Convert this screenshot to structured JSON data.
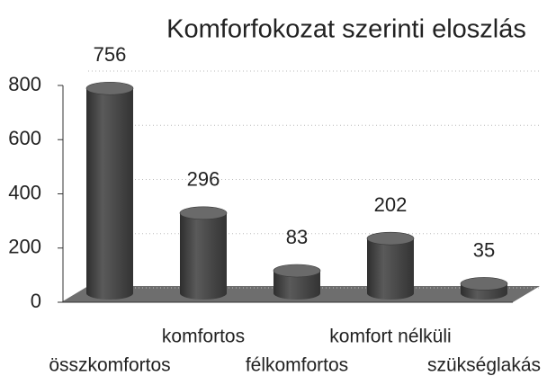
{
  "chart_data": {
    "type": "bar",
    "title": "Komforfokozat szerinti eloszlás",
    "categories": [
      "összkomfortos",
      "komfortos",
      "félkomfortos",
      "komfort nélküli",
      "szükséglakás"
    ],
    "values": [
      756,
      296,
      83,
      202,
      35
    ],
    "color": "#4a4a4a",
    "ylim": [
      0,
      800
    ],
    "yticks": [
      0,
      200,
      400,
      600,
      800
    ],
    "grid": true
  }
}
